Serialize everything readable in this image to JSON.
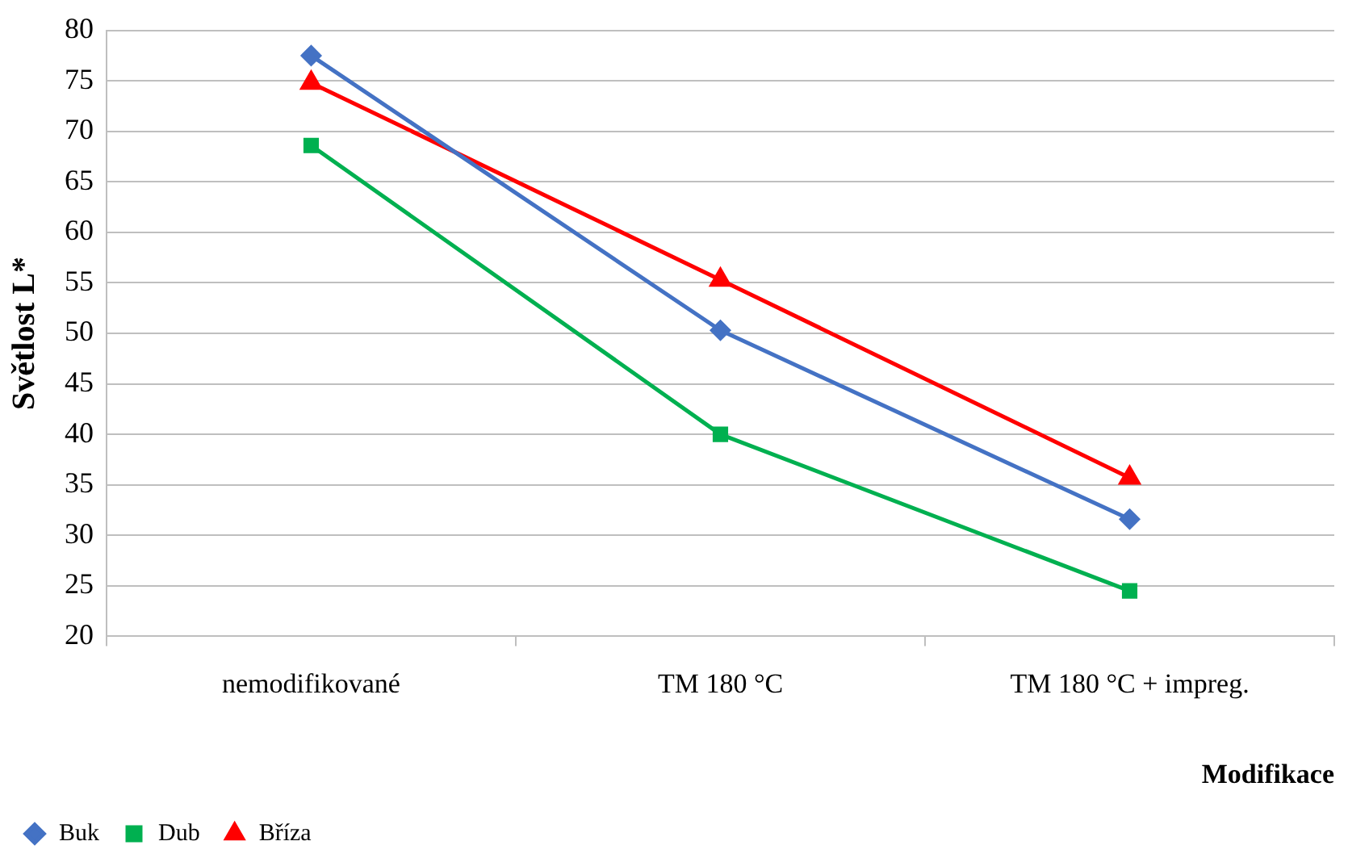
{
  "chart_data": {
    "type": "line",
    "xlabel": "Modifikace",
    "ylabel": "Světlost L*",
    "categories": [
      "nemodifikované",
      "TM 180 °C",
      "TM 180 °C + impreg."
    ],
    "series": [
      {
        "name": "Buk",
        "color": "#4472c4",
        "marker": "diamond",
        "values": [
          77.5,
          50.3,
          31.6
        ]
      },
      {
        "name": "Dub",
        "color": "#00b050",
        "marker": "square",
        "values": [
          68.6,
          40,
          24.5
        ]
      },
      {
        "name": "Bříza",
        "color": "#ff0000",
        "marker": "triangle",
        "values": [
          74.8,
          55.3,
          35.7
        ]
      }
    ],
    "ylim": [
      20,
      80
    ],
    "yticks": [
      20,
      25,
      30,
      35,
      40,
      45,
      50,
      55,
      60,
      65,
      70,
      75,
      80
    ],
    "grid": "y",
    "legend": "bottom left"
  }
}
